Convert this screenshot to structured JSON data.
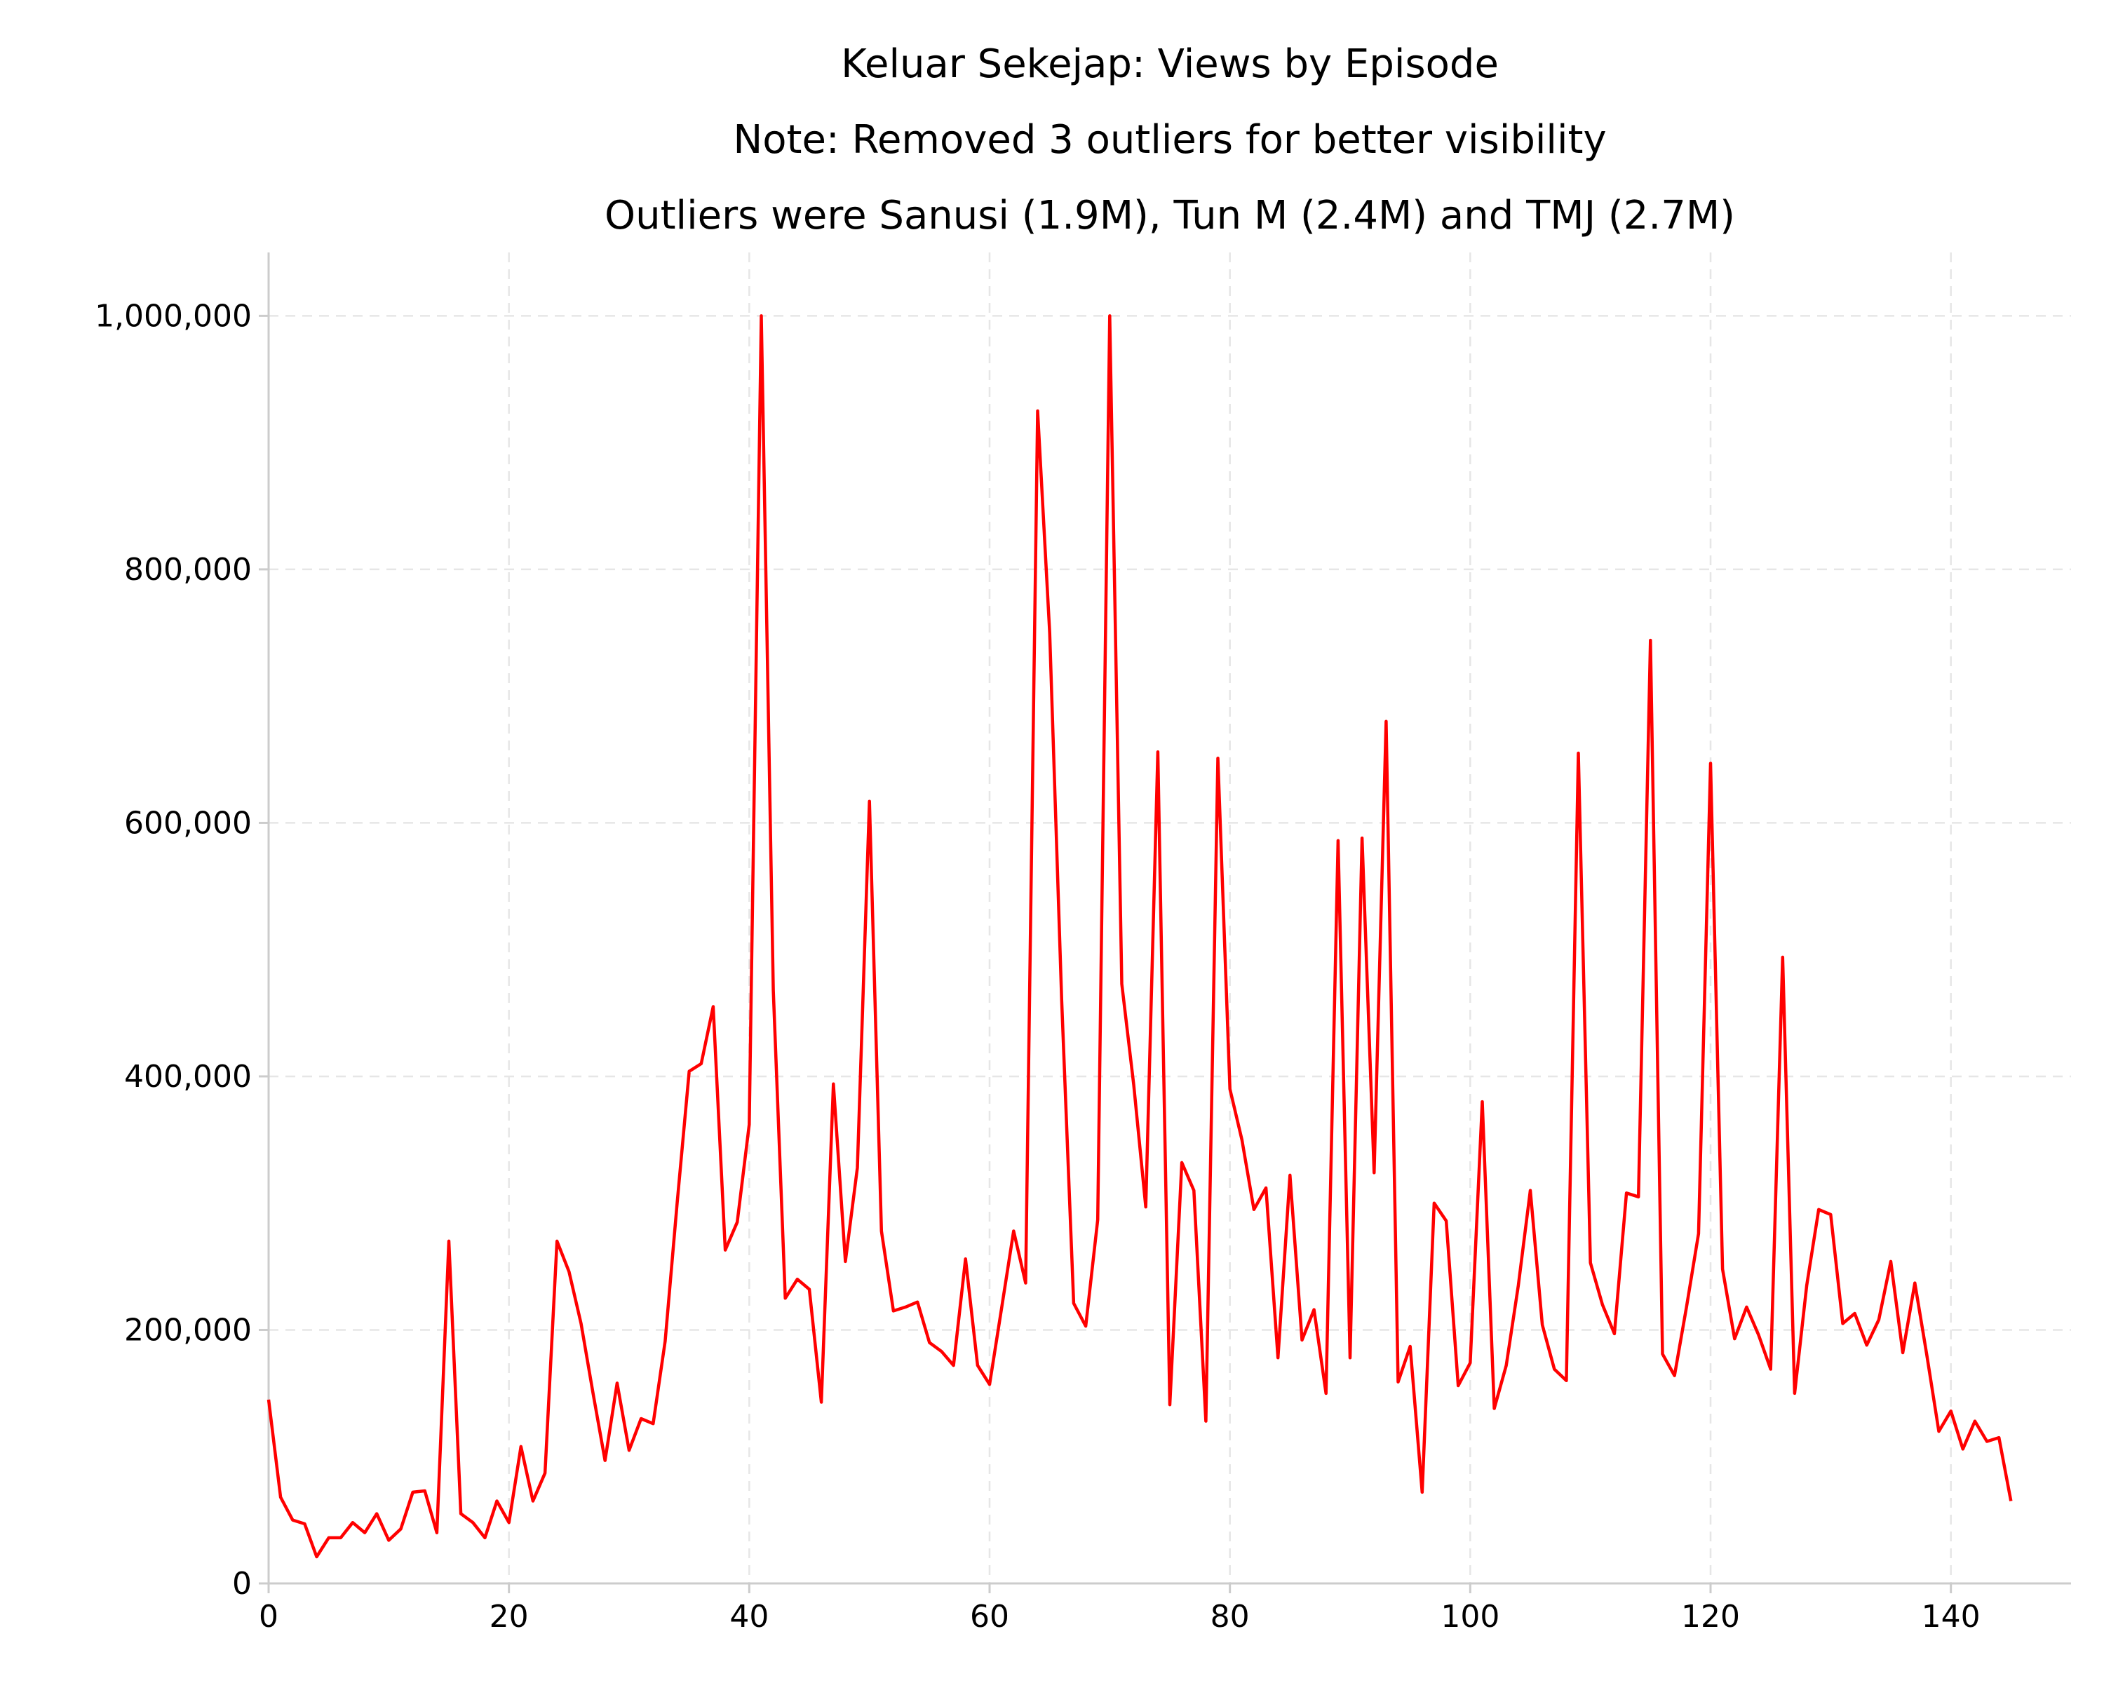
{
  "chart_data": {
    "type": "line",
    "title": "Keluar Sekejap: Views by Episode",
    "subtitle_lines": [
      "Note: Removed 3 outliers for better visibility",
      "Outliers were Sanusi (1.9M), Tun M (2.4M) and TMJ (2.7M)"
    ],
    "xlabel": "",
    "ylabel": "",
    "xlim": [
      0,
      150
    ],
    "ylim": [
      0,
      1050000
    ],
    "x_ticks": [
      0,
      20,
      40,
      60,
      80,
      100,
      120,
      140
    ],
    "x_tick_labels": [
      "0",
      "20",
      "40",
      "60",
      "80",
      "100",
      "120",
      "140"
    ],
    "y_ticks": [
      0,
      200000,
      400000,
      600000,
      800000,
      1000000
    ],
    "y_tick_labels": [
      "0",
      "200,000",
      "400,000",
      "600,000",
      "800,000",
      "1,000,000"
    ],
    "grid": true,
    "legend": "none",
    "color": "#ff0000",
    "series": [
      {
        "x_start": 0,
        "values": [
          145000,
          68000,
          50000,
          47000,
          21000,
          36000,
          36000,
          48000,
          40000,
          55000,
          34000,
          43000,
          72000,
          73000,
          40000,
          270000,
          55000,
          48000,
          36000,
          65000,
          48000,
          108000,
          65000,
          87000,
          270000,
          246000,
          205000,
          150000,
          97000,
          158000,
          105000,
          130000,
          126000,
          191000,
          300000,
          404000,
          410000,
          455000,
          263000,
          285000,
          362000,
          1000000,
          468000,
          225000,
          240000,
          232000,
          143000,
          394000,
          254000,
          328000,
          617000,
          278000,
          215000,
          218000,
          222000,
          190000,
          183000,
          172000,
          256000,
          172000,
          157000,
          217000,
          278000,
          237000,
          925000,
          750000,
          460000,
          221000,
          203000,
          287000,
          1000000,
          473000,
          393000,
          297000,
          656000,
          141000,
          332000,
          310000,
          128000,
          651000,
          390000,
          350000,
          295000,
          312000,
          178000,
          322000,
          192000,
          216000,
          150000,
          586000,
          178000,
          588000,
          324000,
          680000,
          159000,
          187000,
          72000,
          300000,
          286000,
          156000,
          174000,
          380000,
          138000,
          172000,
          235000,
          310000,
          204000,
          169000,
          160000,
          655000,
          253000,
          220000,
          197000,
          308000,
          305000,
          744000,
          181000,
          164000,
          218000,
          276000,
          647000,
          248000,
          193000,
          218000,
          196000,
          169000,
          494000,
          150000,
          235000,
          295000,
          291000,
          205000,
          213000,
          188000,
          208000,
          254000,
          182000,
          237000,
          180000,
          120000,
          136000,
          106000,
          128000,
          112000,
          115000,
          65000
        ]
      }
    ]
  }
}
